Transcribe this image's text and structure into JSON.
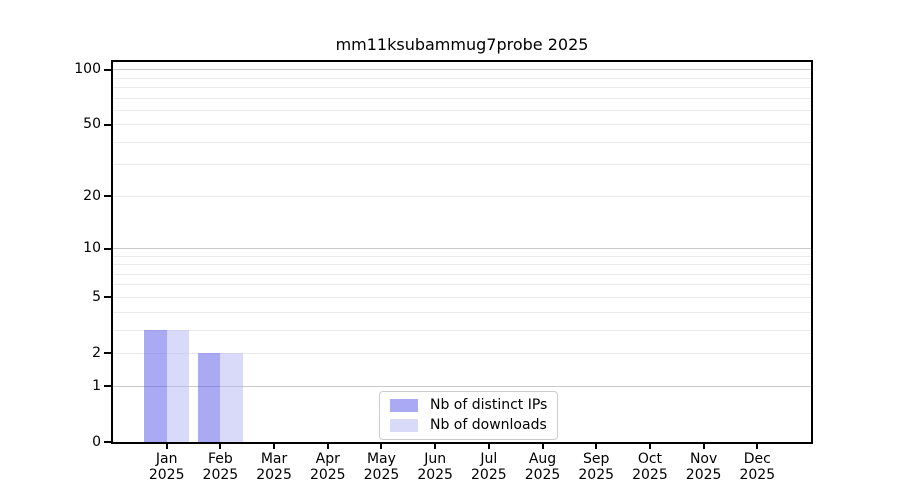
{
  "chart_data": {
    "type": "bar",
    "title": "mm11ksubammug7probe 2025",
    "categories": [
      "Jan 2025",
      "Feb 2025",
      "Mar 2025",
      "Apr 2025",
      "May 2025",
      "Jun 2025",
      "Jul 2025",
      "Aug 2025",
      "Sep 2025",
      "Oct 2025",
      "Nov 2025",
      "Dec 2025"
    ],
    "series": [
      {
        "name": "Nb of distinct IPs",
        "color": "rgba(85,85,233,0.5)",
        "values": [
          3,
          2,
          0,
          0,
          0,
          0,
          0,
          0,
          0,
          0,
          0,
          0
        ]
      },
      {
        "name": "Nb of downloads",
        "color": "rgba(179,179,243,0.5)",
        "values": [
          3,
          2,
          0,
          0,
          0,
          0,
          0,
          0,
          0,
          0,
          0,
          0
        ]
      }
    ],
    "xlabel": "",
    "ylabel": "",
    "y_scale": "log1p",
    "ylim": [
      0,
      110
    ],
    "y_ticks": [
      0,
      1,
      2,
      5,
      10,
      20,
      50,
      100
    ],
    "y_grid_major": [
      1,
      10,
      100
    ],
    "y_grid_minor": [
      2,
      3,
      4,
      5,
      6,
      7,
      8,
      9,
      20,
      30,
      40,
      50,
      60,
      70,
      80,
      90
    ],
    "grid": "horizontal",
    "legend_position": "lower center"
  },
  "colors": {
    "background": "#ffffff",
    "spine": "#000000",
    "text": "#000000",
    "grid_major": "#c9c9c9",
    "grid_minor": "#eaeaea",
    "legend_border": "#cccccc"
  }
}
